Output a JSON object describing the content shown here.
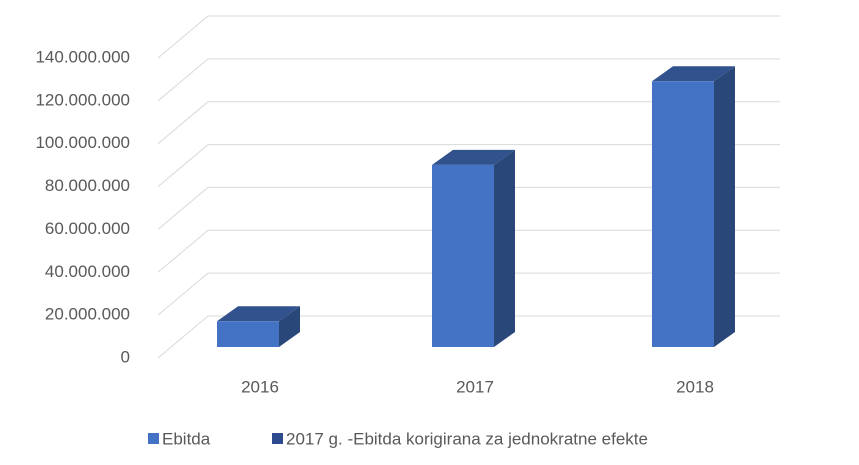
{
  "chart_data": {
    "type": "bar3d",
    "categories": [
      "2016",
      "2017",
      "2018"
    ],
    "series": [
      {
        "name": "Ebitda",
        "color": "#4472c4",
        "values": [
          12000000,
          85000000,
          124000000
        ]
      },
      {
        "name": "2017 g. -Ebitda korigirana za jednokratne efekte",
        "color": "#2f4b8f",
        "values": [
          null,
          null,
          null
        ]
      }
    ],
    "ylim": [
      0,
      140000000
    ],
    "yticks": [
      0,
      {
        "value": 20000000,
        "label": "20.000.000"
      },
      {
        "value": 40000000,
        "label": "40.000.000"
      },
      {
        "value": 60000000,
        "label": "60.000.000"
      },
      {
        "value": 80000000,
        "label": "80.000.000"
      },
      {
        "value": 100000000,
        "label": "100.000.000"
      },
      {
        "value": 120000000,
        "label": "120.000.000"
      },
      {
        "value": 140000000,
        "label": "140.000.000"
      }
    ],
    "grid": true,
    "legend": "bottom"
  }
}
